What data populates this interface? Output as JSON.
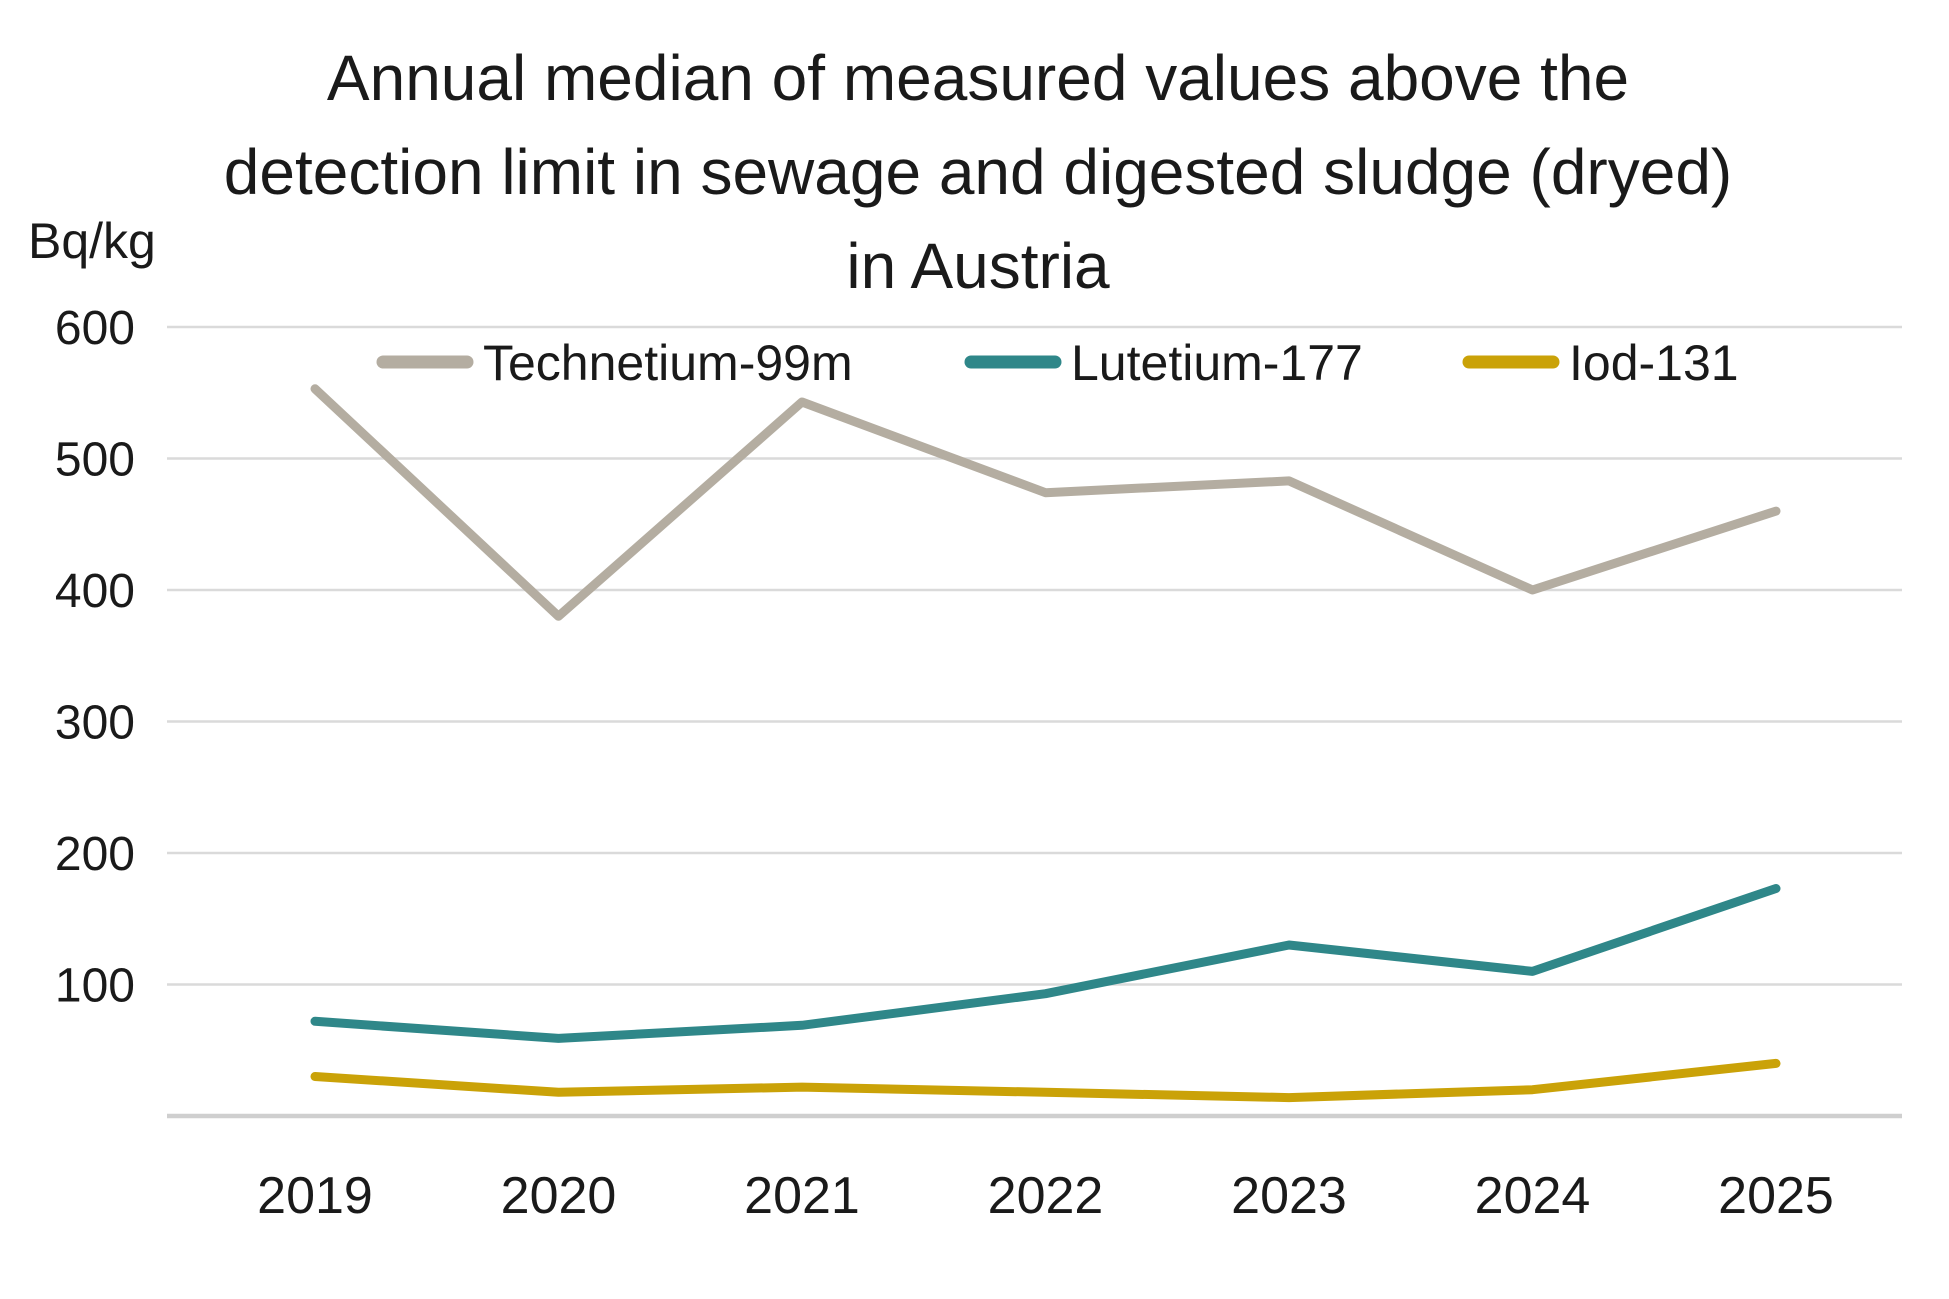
{
  "title": {
    "line1": "Annual median of measured values above the",
    "line2": "detection limit in sewage and digested sludge (dryed)",
    "line3": "in Austria"
  },
  "y_axis": {
    "unit_label": "Bq/kg",
    "tick_labels": [
      "600",
      "500",
      "400",
      "300",
      "200",
      "100"
    ],
    "min": 0,
    "max": 600
  },
  "x_axis": {
    "tick_labels": [
      "2019",
      "2020",
      "2021",
      "2022",
      "2023",
      "2024",
      "2025"
    ]
  },
  "legend": {
    "items": [
      {
        "label": "Technetium-99m",
        "color": "#B4ADA1"
      },
      {
        "label": "Lutetium-177",
        "color": "#2F8789"
      },
      {
        "label": "Iod-131",
        "color": "#CAA208"
      }
    ]
  },
  "colors": {
    "gridline": "#DADADA",
    "axis_line": "#CFCFCF",
    "text": "#1a1a1a",
    "background": "#ffffff"
  },
  "chart_data": {
    "type": "line",
    "title": "Annual median of measured values above the detection limit in sewage and digested sludge (dryed) in Austria",
    "xlabel": "",
    "ylabel": "Bq/kg",
    "ylim": [
      0,
      600
    ],
    "ytick_step": 100,
    "grid": true,
    "legend_position": "top-inside",
    "categories": [
      "2019",
      "2020",
      "2021",
      "2022",
      "2023",
      "2024",
      "2025"
    ],
    "series": [
      {
        "name": "Technetium-99m",
        "color": "#B4ADA1",
        "values": [
          553,
          380,
          543,
          474,
          483,
          400,
          460
        ]
      },
      {
        "name": "Lutetium-177",
        "color": "#2F8789",
        "values": [
          72,
          59,
          69,
          93,
          130,
          110,
          173
        ]
      },
      {
        "name": "Iod-131",
        "color": "#CAA208",
        "values": [
          30,
          18,
          22,
          18,
          14,
          20,
          40
        ]
      }
    ]
  }
}
